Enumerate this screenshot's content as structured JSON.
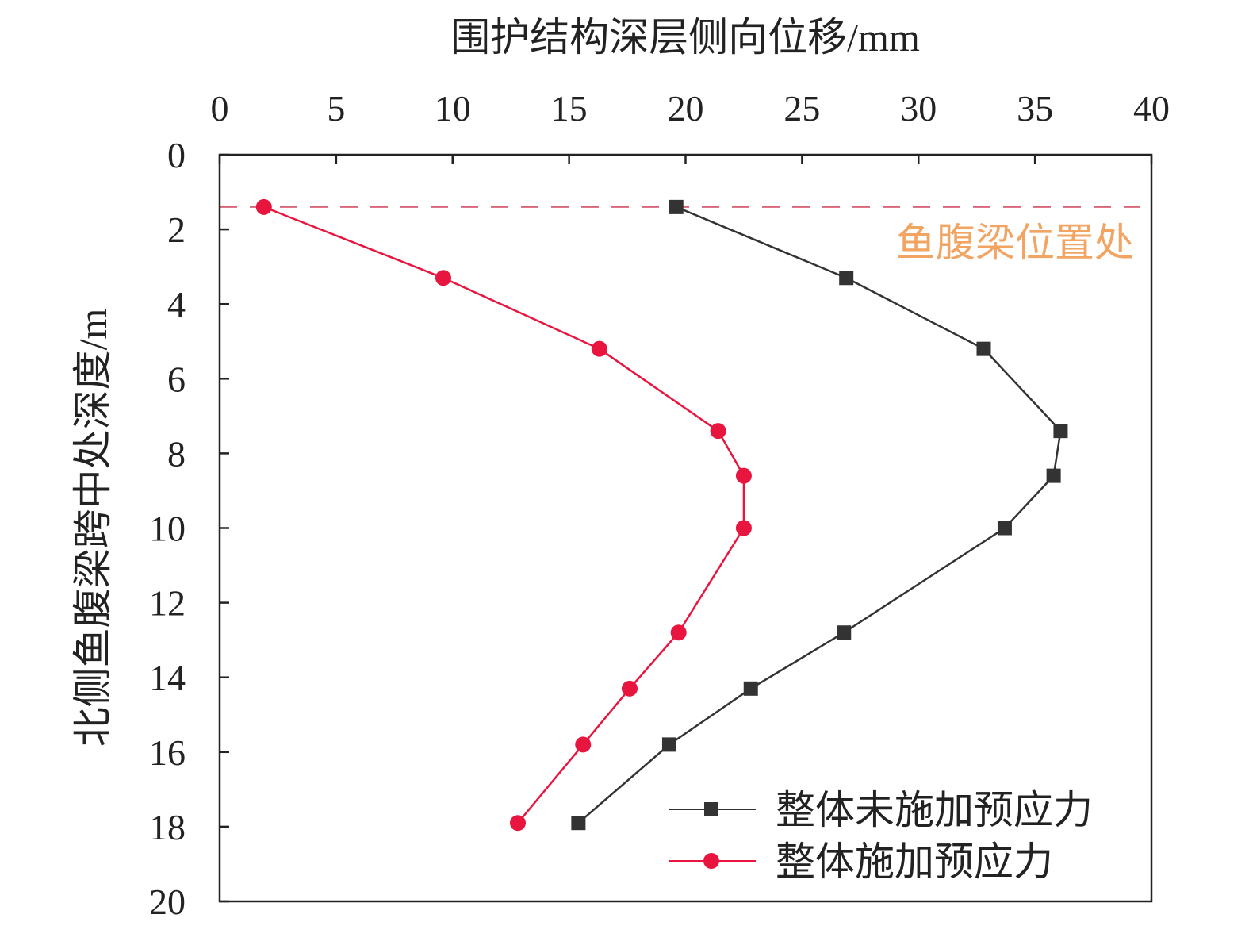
{
  "chart_data": {
    "type": "line",
    "xlabel": "围护结构深层侧向位移/mm",
    "ylabel": "北侧鱼腹梁跨中处深度/m",
    "xlim": [
      0,
      40
    ],
    "ylim": [
      0,
      20
    ],
    "y_inverted": true,
    "x_axis_position": "top",
    "x_ticks": [
      0,
      5,
      10,
      15,
      20,
      25,
      30,
      35,
      40
    ],
    "y_ticks": [
      0,
      2,
      4,
      6,
      8,
      10,
      12,
      14,
      16,
      18,
      20
    ],
    "grid": false,
    "legend_position": "bottom-right",
    "series": [
      {
        "name": "整体未施加预应力",
        "color": "#333333",
        "marker": "square",
        "points": [
          {
            "x": 19.6,
            "y": 1.4
          },
          {
            "x": 26.9,
            "y": 3.3
          },
          {
            "x": 32.8,
            "y": 5.2
          },
          {
            "x": 36.1,
            "y": 7.4
          },
          {
            "x": 35.8,
            "y": 8.6
          },
          {
            "x": 33.7,
            "y": 10.0
          },
          {
            "x": 26.8,
            "y": 12.8
          },
          {
            "x": 22.8,
            "y": 14.3
          },
          {
            "x": 19.3,
            "y": 15.8
          },
          {
            "x": 15.4,
            "y": 17.9
          }
        ]
      },
      {
        "name": "整体施加预应力",
        "color": "#e8163f",
        "marker": "circle",
        "points": [
          {
            "x": 1.9,
            "y": 1.4
          },
          {
            "x": 9.6,
            "y": 3.3
          },
          {
            "x": 16.3,
            "y": 5.2
          },
          {
            "x": 21.4,
            "y": 7.4
          },
          {
            "x": 22.5,
            "y": 8.6
          },
          {
            "x": 22.5,
            "y": 10.0
          },
          {
            "x": 19.7,
            "y": 12.8
          },
          {
            "x": 17.6,
            "y": 14.3
          },
          {
            "x": 15.6,
            "y": 15.8
          },
          {
            "x": 12.8,
            "y": 17.9
          }
        ]
      }
    ],
    "reference_line": {
      "y": 1.4,
      "style": "dashed",
      "color": "#d9657a",
      "label": "鱼腹梁位置处",
      "label_color": "#f2a463"
    }
  }
}
